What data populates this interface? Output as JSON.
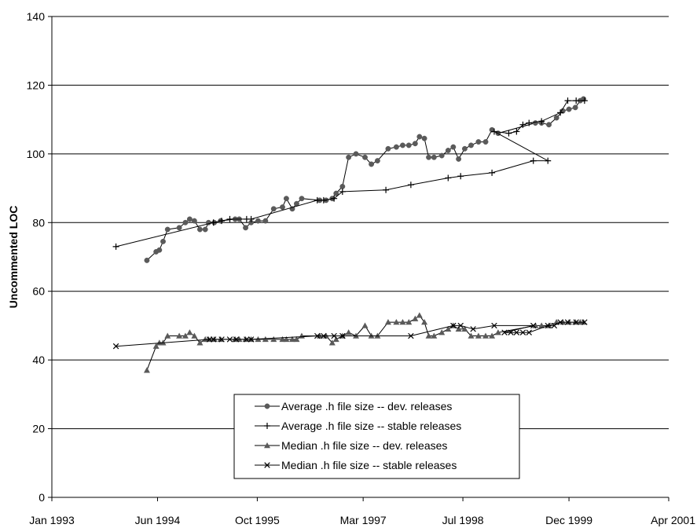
{
  "chart_data": {
    "type": "line",
    "title": "",
    "xlabel": "",
    "ylabel": "Uncommented LOC",
    "xlim": [
      "1993-01-01",
      "2001-04-01"
    ],
    "ylim": [
      0,
      140
    ],
    "x_ticks": [
      "1993-01-01",
      "1994-06-01",
      "1995-10-01",
      "1997-03-01",
      "1998-07-01",
      "1999-12-01",
      "2001-04-01"
    ],
    "x_tick_labels": [
      "Jan 1993",
      "Jun 1994",
      "Oct 1995",
      "Mar 1997",
      "Jul 1998",
      "Dec 1999",
      "Apr 2001"
    ],
    "y_ticks": [
      0,
      20,
      40,
      60,
      80,
      100,
      120,
      140
    ],
    "y_tick_labels": [
      "0",
      "20",
      "40",
      "60",
      "80",
      "100",
      "120",
      "140"
    ],
    "grid": "horizontal",
    "legend_position": "bottom-center",
    "series": [
      {
        "name": "Average .h file size -- dev. releases",
        "marker": "circle",
        "color": "#5a5a5a",
        "points": [
          [
            "1994-04-10",
            69
          ],
          [
            "1994-05-25",
            71.5
          ],
          [
            "1994-06-10",
            72
          ],
          [
            "1994-06-28",
            74.5
          ],
          [
            "1994-07-20",
            78
          ],
          [
            "1994-09-15",
            78.5
          ],
          [
            "1994-10-15",
            80
          ],
          [
            "1994-11-05",
            81
          ],
          [
            "1994-11-28",
            80.5
          ],
          [
            "1994-12-25",
            78
          ],
          [
            "1995-01-20",
            78
          ],
          [
            "1995-02-05",
            80
          ],
          [
            "1995-03-05",
            80
          ],
          [
            "1995-04-05",
            80.5
          ],
          [
            "1995-06-15",
            81
          ],
          [
            "1995-07-05",
            81
          ],
          [
            "1995-08-05",
            78.5
          ],
          [
            "1995-09-01",
            80
          ],
          [
            "1995-10-05",
            80.5
          ],
          [
            "1995-11-10",
            80.5
          ],
          [
            "1995-12-20",
            84
          ],
          [
            "1996-02-01",
            84.5
          ],
          [
            "1996-02-20",
            87
          ],
          [
            "1996-03-20",
            84
          ],
          [
            "1996-04-10",
            85.5
          ],
          [
            "1996-05-05",
            87
          ],
          [
            "1996-08-01",
            86.5
          ],
          [
            "1996-09-01",
            86.5
          ],
          [
            "1996-10-01",
            87
          ],
          [
            "1996-10-20",
            88.5
          ],
          [
            "1996-11-20",
            90.5
          ],
          [
            "1996-12-20",
            99
          ],
          [
            "1997-01-25",
            100
          ],
          [
            "1997-03-10",
            99
          ],
          [
            "1997-04-10",
            97
          ],
          [
            "1997-05-10",
            98
          ],
          [
            "1997-07-01",
            101.5
          ],
          [
            "1997-08-10",
            102
          ],
          [
            "1997-09-10",
            102.5
          ],
          [
            "1997-10-10",
            102.5
          ],
          [
            "1997-11-10",
            103
          ],
          [
            "1997-12-01",
            105
          ],
          [
            "1997-12-25",
            104.5
          ],
          [
            "1998-01-15",
            99
          ],
          [
            "1998-02-10",
            99
          ],
          [
            "1998-03-20",
            99.5
          ],
          [
            "1998-04-20",
            101
          ],
          [
            "1998-05-15",
            102
          ],
          [
            "1998-06-10",
            98.5
          ],
          [
            "1998-07-10",
            101.5
          ],
          [
            "1998-08-10",
            102.5
          ],
          [
            "1998-09-15",
            103.5
          ],
          [
            "1998-10-20",
            103.5
          ],
          [
            "1998-11-20",
            107
          ],
          [
            "1998-12-20",
            106
          ],
          [
            "1999-06-20",
            109
          ],
          [
            "1999-07-20",
            109
          ],
          [
            "1999-08-25",
            108.5
          ],
          [
            "1999-10-01",
            110.5
          ],
          [
            "1999-11-01",
            112.5
          ],
          [
            "1999-12-01",
            113
          ],
          [
            "2000-01-01",
            113.5
          ],
          [
            "2000-01-25",
            115.5
          ],
          [
            "2000-02-10",
            116
          ]
        ]
      },
      {
        "name": "Average .h file size -- stable releases",
        "marker": "plus",
        "color": "#000000",
        "points": [
          [
            "1993-11-10",
            73
          ],
          [
            "1995-03-01",
            80
          ],
          [
            "1995-04-10",
            80.5
          ],
          [
            "1995-05-20",
            81
          ],
          [
            "1995-08-10",
            81
          ],
          [
            "1995-09-01",
            81
          ],
          [
            "1996-07-20",
            86.5
          ],
          [
            "1996-08-20",
            86.5
          ],
          [
            "1996-10-10",
            87
          ],
          [
            "1996-11-20",
            89
          ],
          [
            "1997-06-20",
            89.5
          ],
          [
            "1997-10-20",
            91
          ],
          [
            "1998-04-20",
            93
          ],
          [
            "1998-06-20",
            93.5
          ],
          [
            "1998-11-20",
            94.5
          ],
          [
            "1999-06-10",
            98
          ],
          [
            "1999-08-20",
            98
          ],
          [
            "1998-12-01",
            106.5
          ],
          [
            "1999-02-10",
            106
          ],
          [
            "1999-03-20",
            106.5
          ],
          [
            "1999-04-20",
            108.5
          ],
          [
            "1999-05-20",
            109
          ],
          [
            "1999-07-20",
            109.5
          ],
          [
            "1999-10-20",
            112
          ],
          [
            "1999-11-25",
            115.5
          ],
          [
            "2000-01-05",
            115.5
          ],
          [
            "2000-02-15",
            115.5
          ]
        ]
      },
      {
        "name": "Median .h file size -- dev. releases",
        "marker": "triangle",
        "color": "#5a5a5a",
        "points": [
          [
            "1994-04-10",
            37
          ],
          [
            "1994-05-25",
            44
          ],
          [
            "1994-06-10",
            45
          ],
          [
            "1994-06-28",
            45
          ],
          [
            "1994-07-20",
            47
          ],
          [
            "1994-09-15",
            47
          ],
          [
            "1994-10-15",
            47
          ],
          [
            "1994-11-05",
            48
          ],
          [
            "1994-11-28",
            47
          ],
          [
            "1994-12-25",
            45
          ],
          [
            "1995-01-20",
            46
          ],
          [
            "1995-02-05",
            46
          ],
          [
            "1995-03-05",
            46
          ],
          [
            "1995-04-05",
            46
          ],
          [
            "1995-06-15",
            46
          ],
          [
            "1995-07-05",
            46
          ],
          [
            "1995-08-05",
            46
          ],
          [
            "1995-09-01",
            46
          ],
          [
            "1995-10-05",
            46
          ],
          [
            "1995-11-10",
            46
          ],
          [
            "1995-12-20",
            46
          ],
          [
            "1996-02-01",
            46
          ],
          [
            "1996-02-20",
            46
          ],
          [
            "1996-03-20",
            46
          ],
          [
            "1996-04-10",
            46
          ],
          [
            "1996-05-05",
            47
          ],
          [
            "1996-08-01",
            47
          ],
          [
            "1996-09-01",
            47
          ],
          [
            "1996-10-01",
            45
          ],
          [
            "1996-10-20",
            46
          ],
          [
            "1996-11-20",
            47
          ],
          [
            "1996-12-20",
            48
          ],
          [
            "1997-01-25",
            47
          ],
          [
            "1997-03-10",
            50
          ],
          [
            "1997-04-10",
            47
          ],
          [
            "1997-05-10",
            47
          ],
          [
            "1997-07-01",
            51
          ],
          [
            "1997-08-10",
            51
          ],
          [
            "1997-09-10",
            51
          ],
          [
            "1997-10-10",
            51
          ],
          [
            "1997-11-10",
            52
          ],
          [
            "1997-12-01",
            53
          ],
          [
            "1997-12-25",
            51
          ],
          [
            "1998-01-15",
            47
          ],
          [
            "1998-02-10",
            47
          ],
          [
            "1998-03-20",
            48
          ],
          [
            "1998-04-20",
            49
          ],
          [
            "1998-05-15",
            50
          ],
          [
            "1998-06-10",
            49
          ],
          [
            "1998-07-10",
            49
          ],
          [
            "1998-08-10",
            47
          ],
          [
            "1998-09-15",
            47
          ],
          [
            "1998-10-20",
            47
          ],
          [
            "1998-11-20",
            47
          ],
          [
            "1998-12-20",
            48
          ],
          [
            "1999-06-20",
            50
          ],
          [
            "1999-07-20",
            50
          ],
          [
            "1999-08-25",
            50
          ],
          [
            "1999-10-01",
            51
          ],
          [
            "1999-11-01",
            51
          ],
          [
            "1999-12-01",
            51
          ],
          [
            "2000-01-01",
            51
          ],
          [
            "2000-01-25",
            51
          ],
          [
            "2000-02-10",
            51
          ]
        ]
      },
      {
        "name": "Median .h file size -- stable releases",
        "marker": "x",
        "color": "#000000",
        "points": [
          [
            "1993-11-10",
            44
          ],
          [
            "1995-02-10",
            46
          ],
          [
            "1995-03-01",
            46
          ],
          [
            "1995-04-10",
            46
          ],
          [
            "1995-05-20",
            46
          ],
          [
            "1995-06-20",
            46
          ],
          [
            "1995-08-10",
            46
          ],
          [
            "1995-09-01",
            46
          ],
          [
            "1996-07-20",
            47
          ],
          [
            "1996-08-20",
            47
          ],
          [
            "1996-10-10",
            47
          ],
          [
            "1996-11-20",
            47
          ],
          [
            "1997-10-20",
            47
          ],
          [
            "1998-05-15",
            50
          ],
          [
            "1998-06-20",
            50
          ],
          [
            "1998-08-20",
            49
          ],
          [
            "1998-12-01",
            50
          ],
          [
            "1999-06-10",
            50
          ],
          [
            "1999-01-20",
            48
          ],
          [
            "1999-02-20",
            48
          ],
          [
            "1999-03-20",
            48
          ],
          [
            "1999-04-20",
            48
          ],
          [
            "1999-05-20",
            48
          ],
          [
            "1999-08-20",
            50
          ],
          [
            "1999-09-20",
            50
          ],
          [
            "1999-10-20",
            51
          ],
          [
            "1999-11-25",
            51
          ],
          [
            "2000-01-05",
            51
          ],
          [
            "2000-02-15",
            51
          ]
        ]
      }
    ]
  }
}
